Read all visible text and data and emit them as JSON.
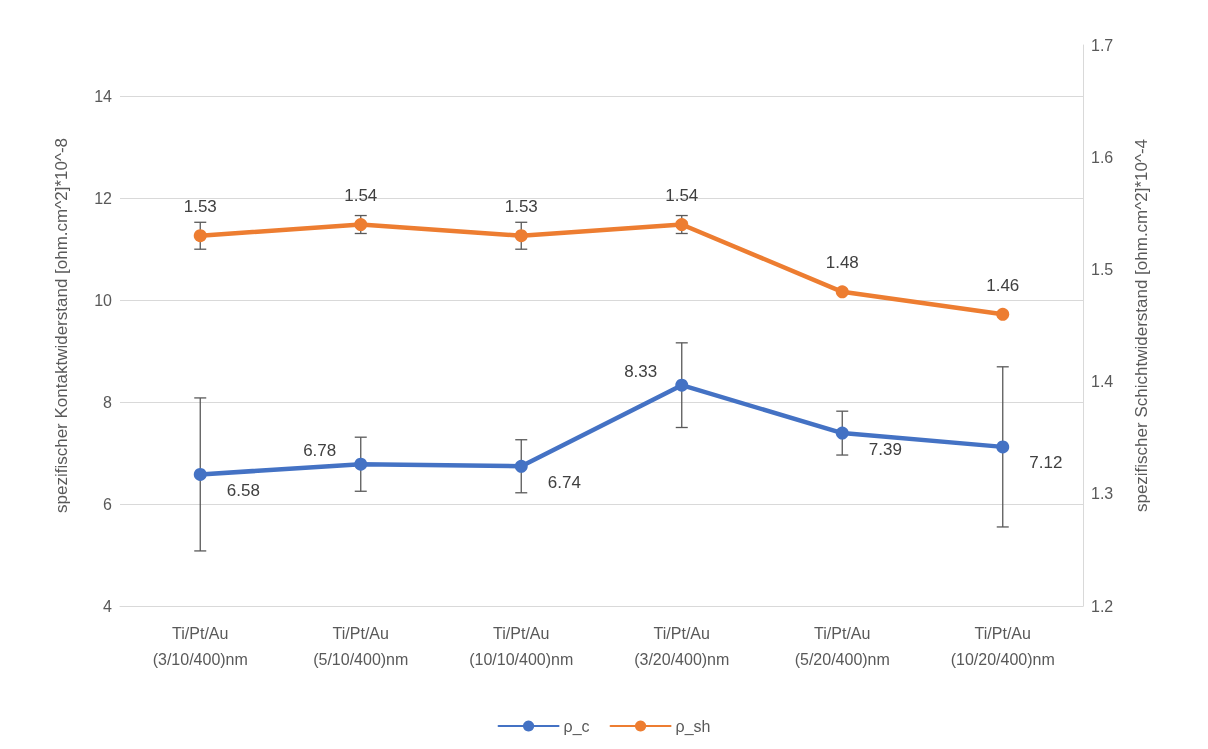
{
  "chart_data": {
    "type": "line",
    "ylabel": "spezifischer Kontaktwiderstand [ohm.cm^2]*10^-8",
    "y2label": "spezifischer Schichtwiderstand [ohm.cm^2]*10^-4",
    "categories": [
      "Ti/Pt/Au\n(3/10/400)nm",
      "Ti/Pt/Au\n(5/10/400)nm",
      "Ti/Pt/Au\n(10/10/400)nm",
      "Ti/Pt/Au\n(3/20/400)nm",
      "Ti/Pt/Au\n(5/20/400)nm",
      "Ti/Pt/Au\n(10/20/400)nm"
    ],
    "series": [
      {
        "name": "ρ_c",
        "color": "#4472c4",
        "values": [
          6.58,
          6.78,
          6.74,
          8.33,
          7.39,
          7.12
        ],
        "errors": [
          1.5,
          0.53,
          0.52,
          0.83,
          0.43,
          1.57
        ]
      },
      {
        "name": "ρ_sh",
        "color": "#ed7d31",
        "axis": "y2",
        "values": [
          1.53,
          1.54,
          1.53,
          1.54,
          1.48,
          1.46
        ],
        "errors": [
          0.012,
          0.008,
          0.012,
          0.008,
          null,
          null
        ]
      }
    ],
    "ylim": [
      4,
      15
    ],
    "yticks": [
      4,
      6,
      8,
      10,
      12,
      14
    ],
    "y2lim": [
      1.2,
      1.7
    ],
    "y2ticks": [
      1.2,
      1.3,
      1.4,
      1.5,
      1.6,
      1.7
    ],
    "grid": "y",
    "legend": "bottom",
    "marker": "circle",
    "line_style": "solid",
    "data_labels": true
  }
}
